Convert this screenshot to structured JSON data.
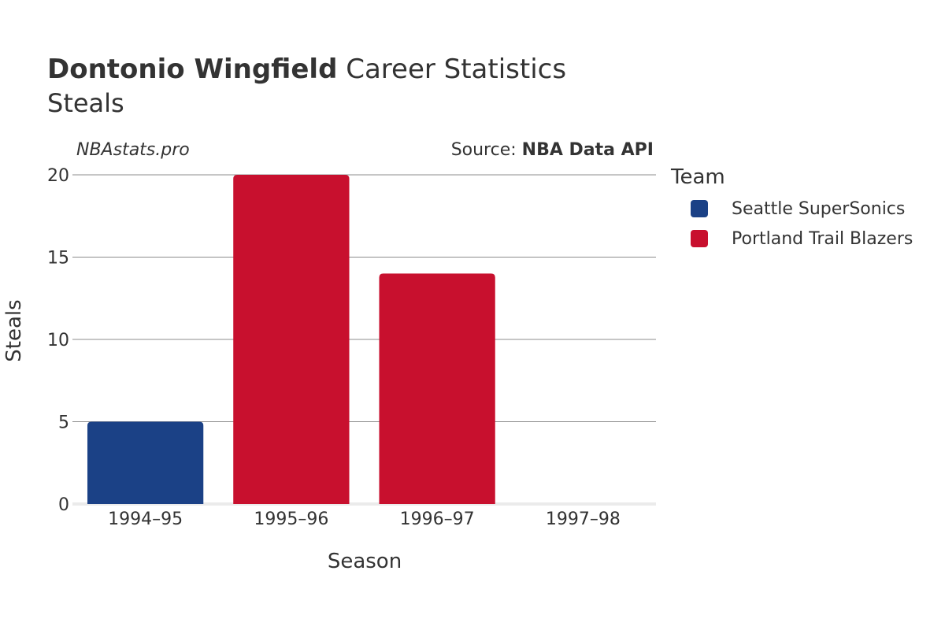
{
  "header": {
    "title_bold": "Dontonio Wingfield",
    "title_rest": " Career Statistics",
    "subtitle": "Steals",
    "site": "NBAstats.pro",
    "source_prefix": "Source: ",
    "source_name": "NBA Data API"
  },
  "legend": {
    "title": "Team",
    "items": [
      {
        "label": "Seattle SuperSonics",
        "color": "#1b4186"
      },
      {
        "label": "Portland Trail Blazers",
        "color": "#c8102e"
      }
    ]
  },
  "chart_data": {
    "type": "bar",
    "title": "Dontonio Wingfield Career Statistics",
    "subtitle": "Steals",
    "xlabel": "Season",
    "ylabel": "Steals",
    "categories": [
      "1994–95",
      "1995–96",
      "1996–97",
      "1997–98"
    ],
    "values": [
      5,
      20,
      14,
      0
    ],
    "teams": [
      "Seattle SuperSonics",
      "Portland Trail Blazers",
      "Portland Trail Blazers",
      "Portland Trail Blazers"
    ],
    "bar_colors": [
      "#1b4186",
      "#c8102e",
      "#c8102e",
      "#c8102e"
    ],
    "ylim": [
      0,
      20
    ],
    "yticks": [
      0,
      5,
      10,
      15,
      20
    ],
    "grid": true,
    "legend_position": "right"
  }
}
